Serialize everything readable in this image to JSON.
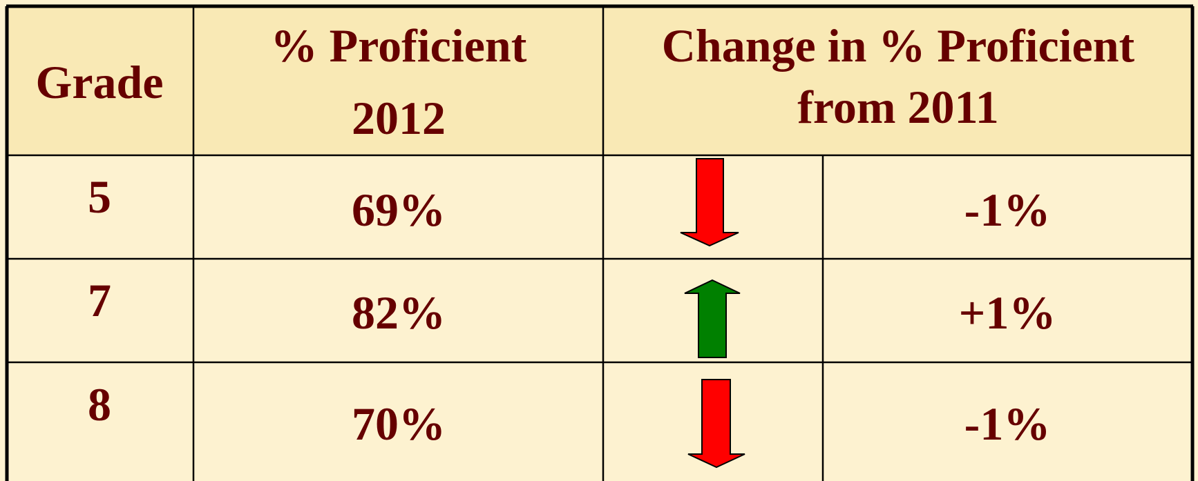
{
  "header": {
    "grade": "Grade",
    "proficient": [
      "% Proficient",
      "2012"
    ],
    "change": [
      "Change in % Proficient",
      "from 2011"
    ]
  },
  "table": {
    "rows": [
      [
        "5",
        "69%",
        "-1%"
      ],
      [
        "7",
        "82%",
        "+1%"
      ],
      [
        "8",
        "70%",
        "-1%"
      ]
    ]
  }
}
